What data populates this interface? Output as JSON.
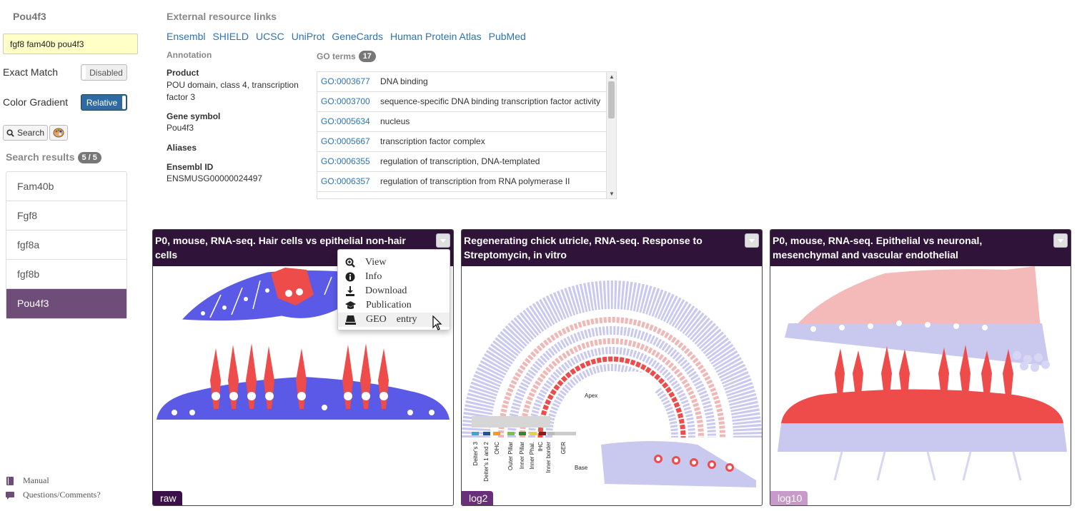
{
  "sidebar": {
    "gene_title": "Pou4f3",
    "search_value": "fgf8 fam40b pou4f3",
    "exact_match_label": "Exact Match",
    "exact_match_state": "Disabled",
    "color_gradient_label": "Color Gradient",
    "color_gradient_state": "Relative",
    "search_button": "Search",
    "results_label": "Search results",
    "results_count": "5 / 5",
    "results": [
      "Fam40b",
      "Fgf8",
      "fgf8a",
      "fgf8b",
      "Pou4f3"
    ],
    "active_result": "Pou4f3",
    "footer": {
      "manual": "Manual",
      "questions": "Questions/Comments?"
    }
  },
  "external": {
    "title": "External resource links",
    "links": [
      "Ensembl",
      "SHIELD",
      "UCSC",
      "UniProt",
      "GeneCards",
      "Human Protein Atlas",
      "PubMed"
    ]
  },
  "annotation": {
    "title": "Annotation",
    "product_label": "Product",
    "product": "POU domain, class 4, transcription factor 3",
    "symbol_label": "Gene symbol",
    "symbol": "Pou4f3",
    "aliases_label": "Aliases",
    "ensembl_label": "Ensembl ID",
    "ensembl": "ENSMUSG00000024497"
  },
  "go": {
    "title": "GO terms",
    "count": "17",
    "rows": [
      {
        "id": "GO:0003677",
        "desc": "DNA binding"
      },
      {
        "id": "GO:0003700",
        "desc": "sequence-specific DNA binding transcription factor activity"
      },
      {
        "id": "GO:0005634",
        "desc": "nucleus"
      },
      {
        "id": "GO:0005667",
        "desc": "transcription factor complex"
      },
      {
        "id": "GO:0006355",
        "desc": "regulation of transcription, DNA-templated"
      },
      {
        "id": "GO:0006357",
        "desc": "regulation of transcription from RNA polymerase II"
      }
    ]
  },
  "panels": [
    {
      "title": "P0, mouse, RNA-seq. Hair cells vs epithelial non-hair cells",
      "scale": "raw",
      "scale_color": "#3b1048"
    },
    {
      "title": "Regenerating chick utricle, RNA-seq. Response to Streptomycin, in vitro",
      "scale": "log2",
      "scale_color": "#6a2f7a"
    },
    {
      "title": "P0, mouse, RNA-seq. Epithelial vs neuronal, mesenchymal and vascular endothelial",
      "scale": "log10",
      "scale_color": "#c79ac9"
    }
  ],
  "cochlea_labels": {
    "cells": [
      "Deiter's 3",
      "Deiter's 1 and 2",
      "OHC",
      "Outer Pillar",
      "Inner Pillar",
      "Inner Phal.",
      "IHC",
      "Inner border",
      "GER"
    ],
    "apex": "Apex",
    "base": "Base"
  },
  "dropdown": [
    "View",
    "Info",
    "Download",
    "Publication",
    "GEO    entry"
  ],
  "colors": {
    "expr_high": "#ee4b4b",
    "expr_low": "#5a5ae6",
    "header": "#2f1339",
    "active": "#6e4d79",
    "link": "#2a74b8"
  }
}
